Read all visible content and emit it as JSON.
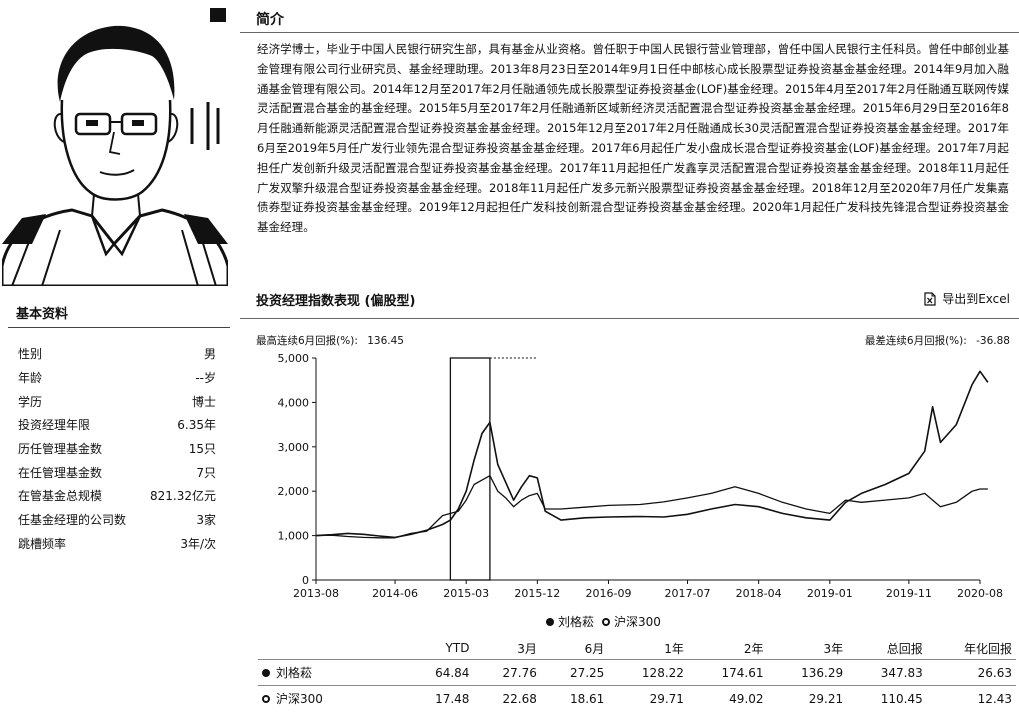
{
  "profile": {
    "title": "基本资料",
    "rows": [
      {
        "label": "性别",
        "value": "男"
      },
      {
        "label": "年龄",
        "value": "--岁"
      },
      {
        "label": "学历",
        "value": "博士"
      },
      {
        "label": "投资经理年限",
        "value": "6.35年"
      },
      {
        "label": "历任管理基金数",
        "value": "15只"
      },
      {
        "label": "在任管理基金数",
        "value": "7只"
      },
      {
        "label": "在管基金总规模",
        "value": "821.32亿元"
      },
      {
        "label": "任基金经理的公司数",
        "value": "3家"
      },
      {
        "label": "跳槽频率",
        "value": "3年/次"
      }
    ]
  },
  "intro": {
    "title": "简介",
    "text": "经济学博士，毕业于中国人民银行研究生部，具有基金从业资格。曾任职于中国人民银行营业管理部，曾任中国人民银行主任科员。曾任中邮创业基金管理有限公司行业研究员、基金经理助理。2013年8月23日至2014年9月1日任中邮核心成长股票型证券投资基金基金经理。2014年9月加入融通基金管理有限公司。2014年12月至2017年2月任融通领先成长股票型证券投资基金(LOF)基金经理。2015年4月至2017年2月任融通互联网传媒灵活配置混合基金的基金经理。2015年5月至2017年2月任融通新区域新经济灵活配置混合型证券投资基金基金经理。2015年6月29日至2016年8月任融通新能源灵活配置混合型证券投资基金基金经理。2015年12月至2017年2月任融通成长30灵活配置混合型证券投资基金基金经理。2017年6月至2019年5月任广发行业领先混合型证券投资基金基金经理。2017年6月起任广发小盘成长混合型证券投资基金(LOF)基金经理。2017年7月起担任广发创新升级灵活配置混合型证券投资基金基金经理。2017年11月起担任广发鑫享灵活配置混合型证券投资基金基金经理。2018年11月起任广发双擎升级混合型证券投资基金基金经理。2018年11月起任广发多元新兴股票型证券投资基金基金经理。2018年12月至2020年7月任广发集嘉债券型证券投资基金基金经理。2019年12月起担任广发科技创新混合型证券投资基金基金经理。2020年1月起任广发科技先锋混合型证券投资基金基金经理。"
  },
  "chart_section": {
    "title": "投资经理指数表现 (偏股型)",
    "export_label": "导出到Excel",
    "max_gain_label": "最高连续6月回报(%):",
    "max_gain_value": "136.45",
    "max_loss_label": "最差连续6月回报(%):",
    "max_loss_value": "-36.88"
  },
  "chart_data": {
    "type": "line",
    "x_labels": [
      "2013-08",
      "2014-06",
      "2015-03",
      "2015-12",
      "2016-09",
      "2017-07",
      "2018-04",
      "2019-01",
      "2019-11",
      "2020-08"
    ],
    "ylim": [
      0,
      5000
    ],
    "yticks": [
      "0",
      "1,000",
      "2,000",
      "3,000",
      "4,000",
      "5,000"
    ],
    "grid": false,
    "legend_position": "bottom",
    "highlight_range": [
      "2015-01",
      "2015-06"
    ],
    "series": [
      {
        "name": "刘格菘",
        "marker": "filled",
        "points": [
          [
            "2013-08",
            1000
          ],
          [
            "2013-10",
            1020
          ],
          [
            "2013-12",
            1050
          ],
          [
            "2014-02",
            1030
          ],
          [
            "2014-04",
            990
          ],
          [
            "2014-06",
            960
          ],
          [
            "2014-08",
            1030
          ],
          [
            "2014-10",
            1120
          ],
          [
            "2014-12",
            1250
          ],
          [
            "2015-01",
            1350
          ],
          [
            "2015-02",
            1600
          ],
          [
            "2015-03",
            2000
          ],
          [
            "2015-04",
            2700
          ],
          [
            "2015-05",
            3300
          ],
          [
            "2015-06",
            3550
          ],
          [
            "2015-07",
            2600
          ],
          [
            "2015-08",
            2200
          ],
          [
            "2015-09",
            1800
          ],
          [
            "2015-10",
            2100
          ],
          [
            "2015-11",
            2350
          ],
          [
            "2015-12",
            2300
          ],
          [
            "2016-01",
            1550
          ],
          [
            "2016-03",
            1350
          ],
          [
            "2016-06",
            1400
          ],
          [
            "2016-09",
            1420
          ],
          [
            "2017-01",
            1430
          ],
          [
            "2017-04",
            1420
          ],
          [
            "2017-07",
            1480
          ],
          [
            "2017-10",
            1600
          ],
          [
            "2018-01",
            1700
          ],
          [
            "2018-04",
            1650
          ],
          [
            "2018-07",
            1500
          ],
          [
            "2018-10",
            1400
          ],
          [
            "2019-01",
            1350
          ],
          [
            "2019-03",
            1750
          ],
          [
            "2019-05",
            1950
          ],
          [
            "2019-08",
            2150
          ],
          [
            "2019-11",
            2400
          ],
          [
            "2020-01",
            2900
          ],
          [
            "2020-02",
            3900
          ],
          [
            "2020-03",
            3100
          ],
          [
            "2020-05",
            3500
          ],
          [
            "2020-07",
            4400
          ],
          [
            "2020-08",
            4700
          ],
          [
            "2020-09",
            4450
          ]
        ]
      },
      {
        "name": "沪深300",
        "marker": "hollow",
        "points": [
          [
            "2013-08",
            1000
          ],
          [
            "2013-10",
            1010
          ],
          [
            "2013-12",
            980
          ],
          [
            "2014-02",
            960
          ],
          [
            "2014-04",
            950
          ],
          [
            "2014-06",
            950
          ],
          [
            "2014-08",
            1050
          ],
          [
            "2014-10",
            1100
          ],
          [
            "2014-12",
            1450
          ],
          [
            "2015-01",
            1500
          ],
          [
            "2015-02",
            1550
          ],
          [
            "2015-03",
            1800
          ],
          [
            "2015-04",
            2150
          ],
          [
            "2015-05",
            2250
          ],
          [
            "2015-06",
            2350
          ],
          [
            "2015-07",
            2000
          ],
          [
            "2015-08",
            1850
          ],
          [
            "2015-09",
            1650
          ],
          [
            "2015-10",
            1800
          ],
          [
            "2015-11",
            1900
          ],
          [
            "2015-12",
            1950
          ],
          [
            "2016-01",
            1600
          ],
          [
            "2016-03",
            1600
          ],
          [
            "2016-06",
            1640
          ],
          [
            "2016-09",
            1680
          ],
          [
            "2017-01",
            1700
          ],
          [
            "2017-04",
            1760
          ],
          [
            "2017-07",
            1850
          ],
          [
            "2017-10",
            1950
          ],
          [
            "2018-01",
            2100
          ],
          [
            "2018-04",
            1950
          ],
          [
            "2018-07",
            1750
          ],
          [
            "2018-10",
            1600
          ],
          [
            "2019-01",
            1500
          ],
          [
            "2019-03",
            1800
          ],
          [
            "2019-05",
            1750
          ],
          [
            "2019-08",
            1800
          ],
          [
            "2019-11",
            1850
          ],
          [
            "2020-01",
            1950
          ],
          [
            "2020-02",
            1800
          ],
          [
            "2020-03",
            1650
          ],
          [
            "2020-05",
            1750
          ],
          [
            "2020-07",
            2000
          ],
          [
            "2020-08",
            2050
          ],
          [
            "2020-09",
            2050
          ]
        ]
      }
    ]
  },
  "performance": {
    "headers": [
      "",
      "YTD",
      "3月",
      "6月",
      "1年",
      "2年",
      "3年",
      "总回报",
      "年化回报"
    ],
    "rows": [
      {
        "name": "刘格菘",
        "marker": "filled",
        "values": [
          "64.84",
          "27.76",
          "27.25",
          "128.22",
          "174.61",
          "136.29",
          "347.83",
          "26.63"
        ]
      },
      {
        "name": "沪深300",
        "marker": "hollow",
        "values": [
          "17.48",
          "22.68",
          "18.61",
          "29.71",
          "49.02",
          "29.21",
          "110.45",
          "12.43"
        ]
      }
    ]
  }
}
